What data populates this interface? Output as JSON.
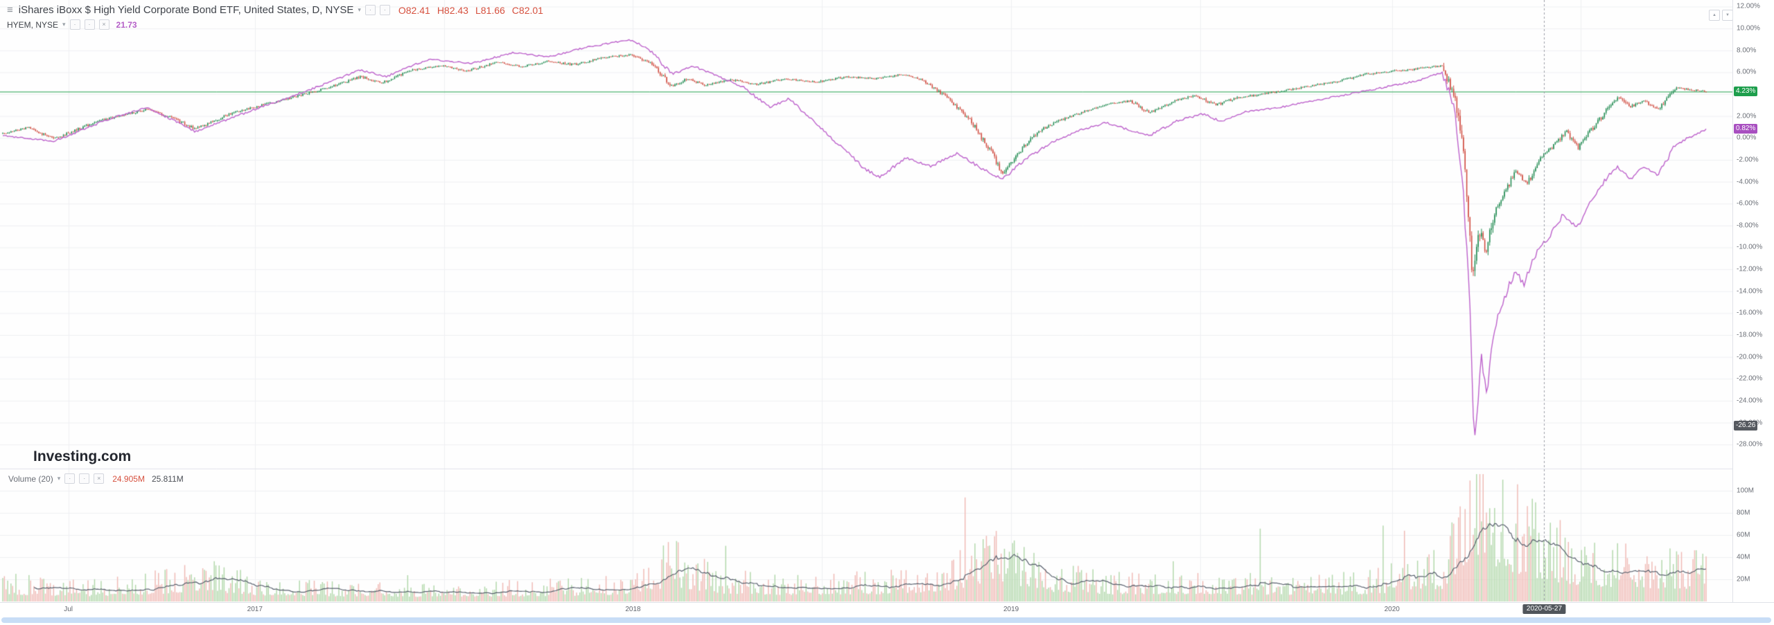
{
  "header": {
    "title": "iShares iBoxx $ High Yield Corporate Bond ETF, United States, D, NYSE",
    "ohlc": [
      "O82.41",
      "H82.43",
      "L81.66",
      "C82.01"
    ],
    "ohlc_color": "#d6503e",
    "comparison_label": "HYEM, NYSE",
    "comparison_value": "21.73",
    "comparison_color": "#b45ec7"
  },
  "watermark": {
    "name": "Investing",
    "tld": ".com"
  },
  "volume_legend": {
    "label": "Volume (20)",
    "current": "24.905M",
    "current_color": "#d6503e",
    "ma": "25.811M"
  },
  "price_axis": {
    "ticks": [
      {
        "label": "12.00%",
        "value": 12
      },
      {
        "label": "10.00%",
        "value": 10
      },
      {
        "label": "8.00%",
        "value": 8
      },
      {
        "label": "6.00%",
        "value": 6
      },
      {
        "label": "4.00%",
        "value": 4
      },
      {
        "label": "2.00%",
        "value": 2
      },
      {
        "label": "0.00%",
        "value": 0
      },
      {
        "label": "-2.00%",
        "value": -2
      },
      {
        "label": "-4.00%",
        "value": -4
      },
      {
        "label": "-6.00%",
        "value": -6
      },
      {
        "label": "-8.00%",
        "value": -8
      },
      {
        "label": "-10.00%",
        "value": -10
      },
      {
        "label": "-12.00%",
        "value": -12
      },
      {
        "label": "-14.00%",
        "value": -14
      },
      {
        "label": "-16.00%",
        "value": -16
      },
      {
        "label": "-18.00%",
        "value": -18
      },
      {
        "label": "-20.00%",
        "value": -20
      },
      {
        "label": "-22.00%",
        "value": -22
      },
      {
        "label": "-24.00%",
        "value": -24
      },
      {
        "label": "-26.00%",
        "value": -26
      },
      {
        "label": "-28.00%",
        "value": -28
      }
    ],
    "badges": [
      {
        "name": "main-price-badge",
        "label": "4.23%",
        "value": 4.23,
        "bg": "#1d9e4c",
        "fg": "#ffffff"
      },
      {
        "name": "comparison-price-badge",
        "label": "0.82%",
        "value": 0.82,
        "bg": "#a84fc0",
        "fg": "#ffffff"
      },
      {
        "name": "crosshair-price-badge",
        "label": "-26.26",
        "value": -26.26,
        "bg": "#55595f",
        "fg": "#ffffff"
      }
    ]
  },
  "volume_axis": {
    "ticks": [
      {
        "label": "100M",
        "value": 100
      },
      {
        "label": "80M",
        "value": 80
      },
      {
        "label": "60M",
        "value": 60
      },
      {
        "label": "40M",
        "value": 40
      },
      {
        "label": "20M",
        "value": 20
      }
    ]
  },
  "time_axis": {
    "labels": [
      {
        "label": "Jul",
        "t": 0.0385
      },
      {
        "label": "2017",
        "t": 0.148
      },
      {
        "label": "2018",
        "t": 0.37
      },
      {
        "label": "2019",
        "t": 0.592
      },
      {
        "label": "2020",
        "t": 0.8156
      }
    ],
    "crosshair": {
      "label": "2020-05-27",
      "t": 0.905
    }
  },
  "chart_data": {
    "type": [
      "candlestick",
      "line",
      "volume-bar"
    ],
    "y_axis": {
      "unit": "%",
      "max": 12.6,
      "min": -30.2,
      "tick_step": 2
    },
    "bar_count": 1040,
    "price_line_value": 4.23,
    "last_close_pct": 4.23,
    "comparison_last_pct": 0.82,
    "crosshair_value": -26.26,
    "volume_axis_max": 120,
    "volume_ma_period": 20,
    "colors": {
      "up": "#1f8a50",
      "down": "#d04a3e",
      "comparison": "#bd62cc",
      "price_line": "#23a14d",
      "vol_up": "#b2d8ab",
      "vol_down": "#f0bab5",
      "vol_ma": "#59616e",
      "grid": "#eff0f3",
      "crosshair": "#9a9da6",
      "separator": "#e1e3ea",
      "background": "#fefefe"
    },
    "grid_vertical_t": [
      0.0385,
      0.148,
      0.259,
      0.37,
      0.481,
      0.592,
      0.703,
      0.8156,
      0.9265
    ],
    "main_series_keypoints": [
      [
        0.0,
        0.4
      ],
      [
        0.015,
        1.0
      ],
      [
        0.03,
        -0.1
      ],
      [
        0.055,
        1.5
      ],
      [
        0.085,
        2.6
      ],
      [
        0.1,
        1.8
      ],
      [
        0.113,
        0.8
      ],
      [
        0.135,
        2.3
      ],
      [
        0.148,
        2.8
      ],
      [
        0.165,
        3.5
      ],
      [
        0.18,
        4.1
      ],
      [
        0.195,
        4.8
      ],
      [
        0.21,
        5.6
      ],
      [
        0.222,
        5.0
      ],
      [
        0.24,
        6.2
      ],
      [
        0.258,
        6.6
      ],
      [
        0.272,
        6.1
      ],
      [
        0.29,
        6.9
      ],
      [
        0.305,
        6.5
      ],
      [
        0.32,
        7.0
      ],
      [
        0.335,
        6.7
      ],
      [
        0.352,
        7.3
      ],
      [
        0.368,
        7.6
      ],
      [
        0.38,
        6.9
      ],
      [
        0.393,
        4.7
      ],
      [
        0.402,
        5.4
      ],
      [
        0.412,
        4.8
      ],
      [
        0.428,
        5.3
      ],
      [
        0.443,
        4.9
      ],
      [
        0.46,
        5.4
      ],
      [
        0.478,
        5.1
      ],
      [
        0.495,
        5.6
      ],
      [
        0.512,
        5.4
      ],
      [
        0.528,
        5.8
      ],
      [
        0.54,
        5.3
      ],
      [
        0.555,
        3.6
      ],
      [
        0.568,
        1.6
      ],
      [
        0.58,
        -1.2
      ],
      [
        0.587,
        -3.4
      ],
      [
        0.595,
        -1.6
      ],
      [
        0.607,
        0.5
      ],
      [
        0.62,
        1.6
      ],
      [
        0.635,
        2.4
      ],
      [
        0.65,
        3.1
      ],
      [
        0.662,
        3.4
      ],
      [
        0.673,
        2.3
      ],
      [
        0.688,
        3.4
      ],
      [
        0.7,
        3.9
      ],
      [
        0.712,
        3.0
      ],
      [
        0.725,
        3.7
      ],
      [
        0.74,
        4.0
      ],
      [
        0.755,
        4.4
      ],
      [
        0.77,
        4.8
      ],
      [
        0.785,
        5.2
      ],
      [
        0.8,
        5.8
      ],
      [
        0.815,
        6.1
      ],
      [
        0.83,
        6.3
      ],
      [
        0.845,
        6.6
      ],
      [
        0.853,
        3.5
      ],
      [
        0.858,
        -2.0
      ],
      [
        0.863,
        -13.0
      ],
      [
        0.867,
        -8.5
      ],
      [
        0.871,
        -10.5
      ],
      [
        0.876,
        -6.5
      ],
      [
        0.882,
        -5.0
      ],
      [
        0.888,
        -3.0
      ],
      [
        0.895,
        -4.2
      ],
      [
        0.902,
        -2.0
      ],
      [
        0.91,
        -0.8
      ],
      [
        0.918,
        0.6
      ],
      [
        0.925,
        -0.9
      ],
      [
        0.933,
        0.8
      ],
      [
        0.941,
        2.4
      ],
      [
        0.949,
        3.8
      ],
      [
        0.955,
        2.8
      ],
      [
        0.963,
        3.4
      ],
      [
        0.972,
        2.6
      ],
      [
        0.982,
        4.6
      ],
      [
        1.0,
        4.23
      ]
    ],
    "comparison_keypoints": [
      [
        0.0,
        0.2
      ],
      [
        0.03,
        -0.3
      ],
      [
        0.06,
        1.6
      ],
      [
        0.085,
        2.8
      ],
      [
        0.113,
        0.6
      ],
      [
        0.148,
        2.6
      ],
      [
        0.18,
        4.4
      ],
      [
        0.21,
        6.2
      ],
      [
        0.225,
        5.6
      ],
      [
        0.25,
        7.2
      ],
      [
        0.275,
        6.8
      ],
      [
        0.3,
        7.8
      ],
      [
        0.32,
        7.4
      ],
      [
        0.34,
        8.2
      ],
      [
        0.368,
        9.0
      ],
      [
        0.38,
        8.0
      ],
      [
        0.393,
        5.8
      ],
      [
        0.405,
        6.6
      ],
      [
        0.42,
        5.6
      ],
      [
        0.435,
        4.6
      ],
      [
        0.45,
        2.8
      ],
      [
        0.462,
        3.6
      ],
      [
        0.475,
        1.6
      ],
      [
        0.49,
        -0.5
      ],
      [
        0.506,
        -2.8
      ],
      [
        0.515,
        -3.6
      ],
      [
        0.53,
        -1.8
      ],
      [
        0.545,
        -2.6
      ],
      [
        0.56,
        -1.4
      ],
      [
        0.575,
        -2.8
      ],
      [
        0.587,
        -3.8
      ],
      [
        0.6,
        -2.0
      ],
      [
        0.615,
        -0.5
      ],
      [
        0.63,
        0.6
      ],
      [
        0.648,
        1.4
      ],
      [
        0.66,
        0.8
      ],
      [
        0.673,
        0.2
      ],
      [
        0.69,
        1.6
      ],
      [
        0.705,
        2.2
      ],
      [
        0.715,
        1.5
      ],
      [
        0.73,
        2.4
      ],
      [
        0.75,
        2.8
      ],
      [
        0.77,
        3.4
      ],
      [
        0.79,
        4.0
      ],
      [
        0.81,
        4.6
      ],
      [
        0.83,
        5.2
      ],
      [
        0.845,
        6.0
      ],
      [
        0.852,
        3.0
      ],
      [
        0.857,
        -4.0
      ],
      [
        0.861,
        -14.0
      ],
      [
        0.864,
        -28.2
      ],
      [
        0.868,
        -20.0
      ],
      [
        0.871,
        -23.5
      ],
      [
        0.876,
        -17.0
      ],
      [
        0.882,
        -14.5
      ],
      [
        0.888,
        -12.0
      ],
      [
        0.893,
        -13.5
      ],
      [
        0.9,
        -10.5
      ],
      [
        0.908,
        -9.0
      ],
      [
        0.916,
        -7.0
      ],
      [
        0.924,
        -8.2
      ],
      [
        0.932,
        -6.0
      ],
      [
        0.94,
        -4.0
      ],
      [
        0.948,
        -2.5
      ],
      [
        0.955,
        -3.8
      ],
      [
        0.963,
        -2.6
      ],
      [
        0.972,
        -3.4
      ],
      [
        0.982,
        -0.6
      ],
      [
        1.0,
        0.82
      ]
    ],
    "volume_keypoints": [
      [
        0.0,
        14
      ],
      [
        0.05,
        10
      ],
      [
        0.1,
        16
      ],
      [
        0.113,
        22
      ],
      [
        0.15,
        12
      ],
      [
        0.2,
        10
      ],
      [
        0.25,
        9
      ],
      [
        0.3,
        10
      ],
      [
        0.35,
        12
      ],
      [
        0.368,
        14
      ],
      [
        0.393,
        30
      ],
      [
        0.42,
        16
      ],
      [
        0.46,
        13
      ],
      [
        0.5,
        14
      ],
      [
        0.53,
        15
      ],
      [
        0.555,
        22
      ],
      [
        0.587,
        38
      ],
      [
        0.61,
        20
      ],
      [
        0.65,
        14
      ],
      [
        0.7,
        15
      ],
      [
        0.75,
        13
      ],
      [
        0.8,
        14
      ],
      [
        0.845,
        25
      ],
      [
        0.857,
        60
      ],
      [
        0.863,
        95
      ],
      [
        0.875,
        70
      ],
      [
        0.89,
        55
      ],
      [
        0.91,
        40
      ],
      [
        0.93,
        30
      ],
      [
        0.95,
        28
      ],
      [
        0.97,
        26
      ],
      [
        1.0,
        24.9
      ]
    ]
  }
}
